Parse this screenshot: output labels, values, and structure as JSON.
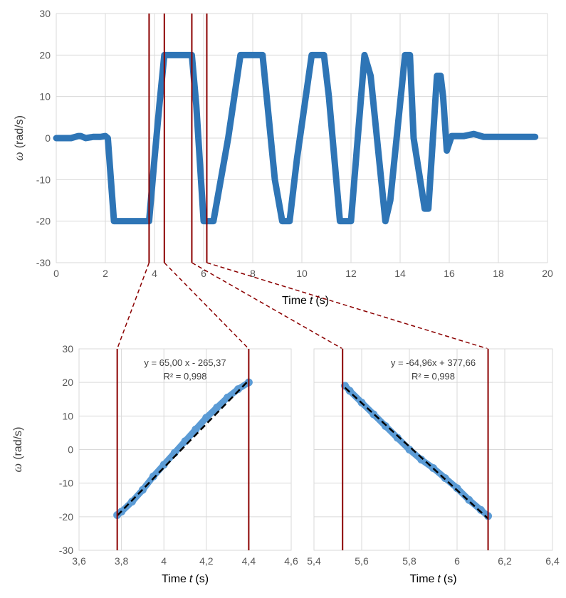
{
  "colors": {
    "series_main": "#2e75b6",
    "series_zoom": "#5b9bd5",
    "fit_line": "#000000",
    "markers": "#8b0000",
    "grid": "#d9d9d9",
    "text": "#595959"
  },
  "chart_data": [
    {
      "id": "main",
      "type": "line",
      "xlabel": "Time",
      "xlabel_var": "t",
      "xlabel_unit": "(s)",
      "ylabel_symbol": "ω",
      "ylabel_unit": "(rad/s)",
      "xlim": [
        0,
        20
      ],
      "ylim": [
        -30,
        30
      ],
      "xticks": [
        "0",
        "2",
        "4",
        "6",
        "8",
        "10",
        "12",
        "14",
        "16",
        "18",
        "20"
      ],
      "yticks": [
        "-30",
        "-20",
        "-10",
        "0",
        "10",
        "20",
        "30"
      ],
      "grid": true,
      "marker_times": [
        3.78,
        4.4,
        5.52,
        6.13
      ],
      "series": [
        {
          "x": [
            0,
            0.3,
            0.6,
            0.9,
            1.0,
            1.2,
            1.5,
            1.8,
            2.0,
            2.1,
            2.35,
            2.45,
            3.0,
            3.5,
            3.78,
            4.0,
            4.2,
            4.4,
            5.0,
            5.52,
            5.7,
            6.0,
            6.13,
            6.4,
            7.0,
            7.5,
            7.9,
            8.1,
            8.4,
            8.9,
            9.2,
            9.5,
            9.8,
            10.4,
            10.9,
            11.1,
            11.55,
            12.0,
            12.55,
            12.8,
            13.4,
            13.6,
            14.2,
            14.4,
            14.55,
            15.0,
            15.15,
            15.5,
            15.65,
            15.75,
            15.9,
            16.1,
            16.6,
            17.0,
            17.4,
            18.0,
            19.0,
            19.5
          ],
          "y": [
            0,
            0,
            0,
            0.5,
            0.5,
            0,
            0.3,
            0.3,
            0.5,
            0,
            -20,
            -20,
            -20,
            -20,
            -20,
            -5,
            8,
            20,
            20,
            20,
            8,
            -20,
            -20,
            -20,
            0,
            20,
            20,
            20,
            20,
            -10,
            -20,
            -20,
            -5,
            20,
            20,
            10,
            -20,
            -20,
            20,
            15,
            -20,
            -15,
            20,
            20,
            0,
            -17,
            -17,
            15,
            15,
            10,
            -3,
            0.5,
            0.5,
            1,
            0.3,
            0.3,
            0.3,
            0.3
          ]
        }
      ]
    },
    {
      "id": "zoom-left",
      "type": "scatter",
      "xlabel": "Time",
      "xlabel_var": "t",
      "xlabel_unit": "(s)",
      "ylabel_symbol": "ω",
      "ylabel_unit": "(rad/s)",
      "xlim": [
        3.6,
        4.6
      ],
      "ylim": [
        -30,
        30
      ],
      "xticks": [
        "3,6",
        "3,8",
        "4",
        "4,2",
        "4,4",
        "4,6"
      ],
      "yticks": [
        "-30",
        "-20",
        "-10",
        "0",
        "10",
        "20",
        "30"
      ],
      "grid": true,
      "marker_times": [
        3.78,
        4.4
      ],
      "series": [
        {
          "x": [
            3.78,
            3.8,
            3.85,
            3.9,
            3.95,
            4.0,
            4.05,
            4.1,
            4.15,
            4.2,
            4.25,
            4.3,
            4.35,
            4.4
          ],
          "y": [
            -19.5,
            -18.5,
            -15.5,
            -12,
            -8,
            -4.5,
            -1,
            2.5,
            6,
            9.5,
            12.5,
            15.5,
            18,
            20
          ]
        }
      ],
      "fit": {
        "slope": 65.0,
        "intercept": -265.37,
        "x_range": [
          3.78,
          4.4
        ],
        "equation": "y = 65,00 x - 265,37",
        "r2": "R² = 0,998"
      }
    },
    {
      "id": "zoom-right",
      "type": "scatter",
      "xlabel": "Time",
      "xlabel_var": "t",
      "xlabel_unit": "(s)",
      "xlim": [
        5.4,
        6.4
      ],
      "ylim": [
        -30,
        30
      ],
      "xticks": [
        "5,4",
        "5,6",
        "5,8",
        "6",
        "6,2",
        "6,4"
      ],
      "grid": true,
      "marker_times": [
        5.52,
        6.13
      ],
      "series": [
        {
          "x": [
            5.53,
            5.55,
            5.6,
            5.65,
            5.7,
            5.75,
            5.8,
            5.85,
            5.9,
            5.95,
            6.0,
            6.05,
            6.1,
            6.13
          ],
          "y": [
            19,
            17.5,
            14,
            10.5,
            7,
            3.5,
            0,
            -3,
            -5.5,
            -8.5,
            -11.5,
            -15,
            -18,
            -19.8
          ]
        }
      ],
      "fit": {
        "slope": -64.96,
        "intercept": 377.66,
        "x_range": [
          5.53,
          6.13
        ],
        "equation": "y = -64,96x + 377,66",
        "r2": "R² = 0,998"
      }
    }
  ]
}
